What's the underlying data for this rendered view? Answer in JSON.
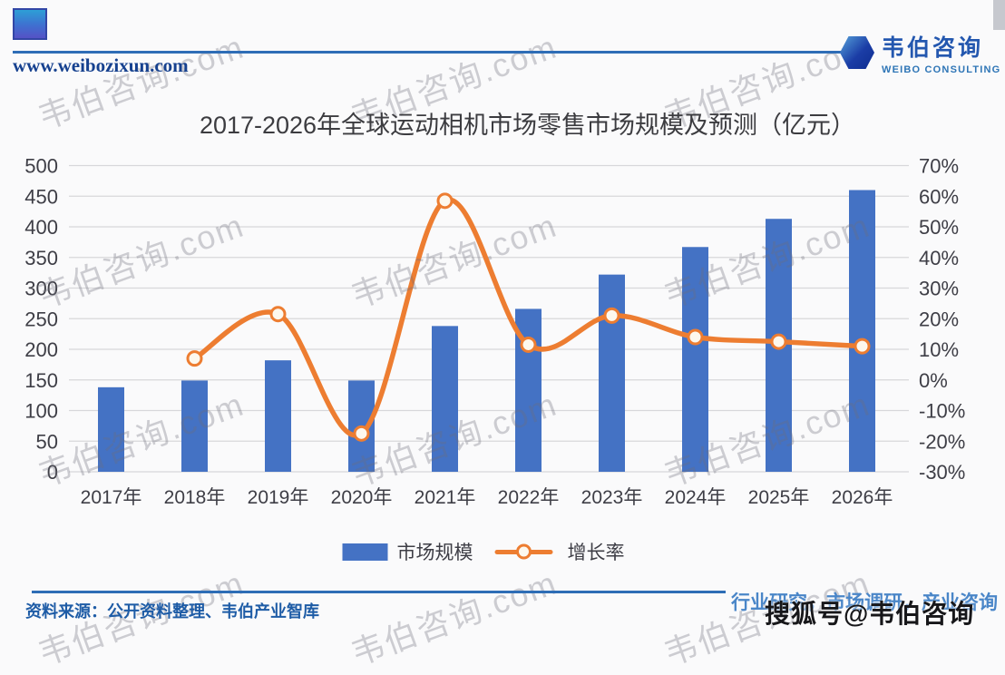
{
  "header": {
    "website": "www.weibozixun.com",
    "brand_name": "韦伯咨询",
    "brand_subtitle": "WEIBO CONSULTING"
  },
  "title": "2017-2026年全球运动相机市场零售市场规模及预测（亿元）",
  "chart_data": {
    "type": "bar",
    "subtype": "combo bar+line, dual axis",
    "title": "2017-2026年全球运动相机市场零售市场规模及预测（亿元）",
    "categories": [
      "2017年",
      "2018年",
      "2019年",
      "2020年",
      "2021年",
      "2022年",
      "2023年",
      "2024年",
      "2025年",
      "2026年"
    ],
    "series": [
      {
        "name": "市场规模",
        "type": "bar",
        "axis": "left",
        "color": "#4472c4",
        "values": [
          138,
          149,
          182,
          149,
          238,
          266,
          322,
          367,
          413,
          460
        ]
      },
      {
        "name": "增长率",
        "type": "line",
        "axis": "right",
        "color": "#ed7d31",
        "marker": "circle-open",
        "values_percent": [
          null,
          7,
          21.5,
          -17.5,
          58.5,
          11.5,
          21,
          14,
          12.5,
          11
        ]
      }
    ],
    "left_axis": {
      "min": 0,
      "max": 500,
      "step": 50
    },
    "right_axis": {
      "min": -30,
      "max": 70,
      "step": 10,
      "suffix": "%"
    },
    "grid": "horizontal",
    "legend_position": "bottom"
  },
  "footer": {
    "source": "资料来源：公开资料整理、韦伯产业智库",
    "tagline": "行业研究，市场调研，产业咨询",
    "sohu_badge": "搜狐号@韦伯咨询"
  },
  "watermark": {
    "text": "韦伯咨询.com"
  },
  "colors": {
    "bar": "#4472c4",
    "line": "#ed7d31",
    "marker_fill": "#fdf8ee",
    "grid": "#d7d7da",
    "axis_text": "#3e3e46",
    "accent_blue": "#2e6db6"
  }
}
